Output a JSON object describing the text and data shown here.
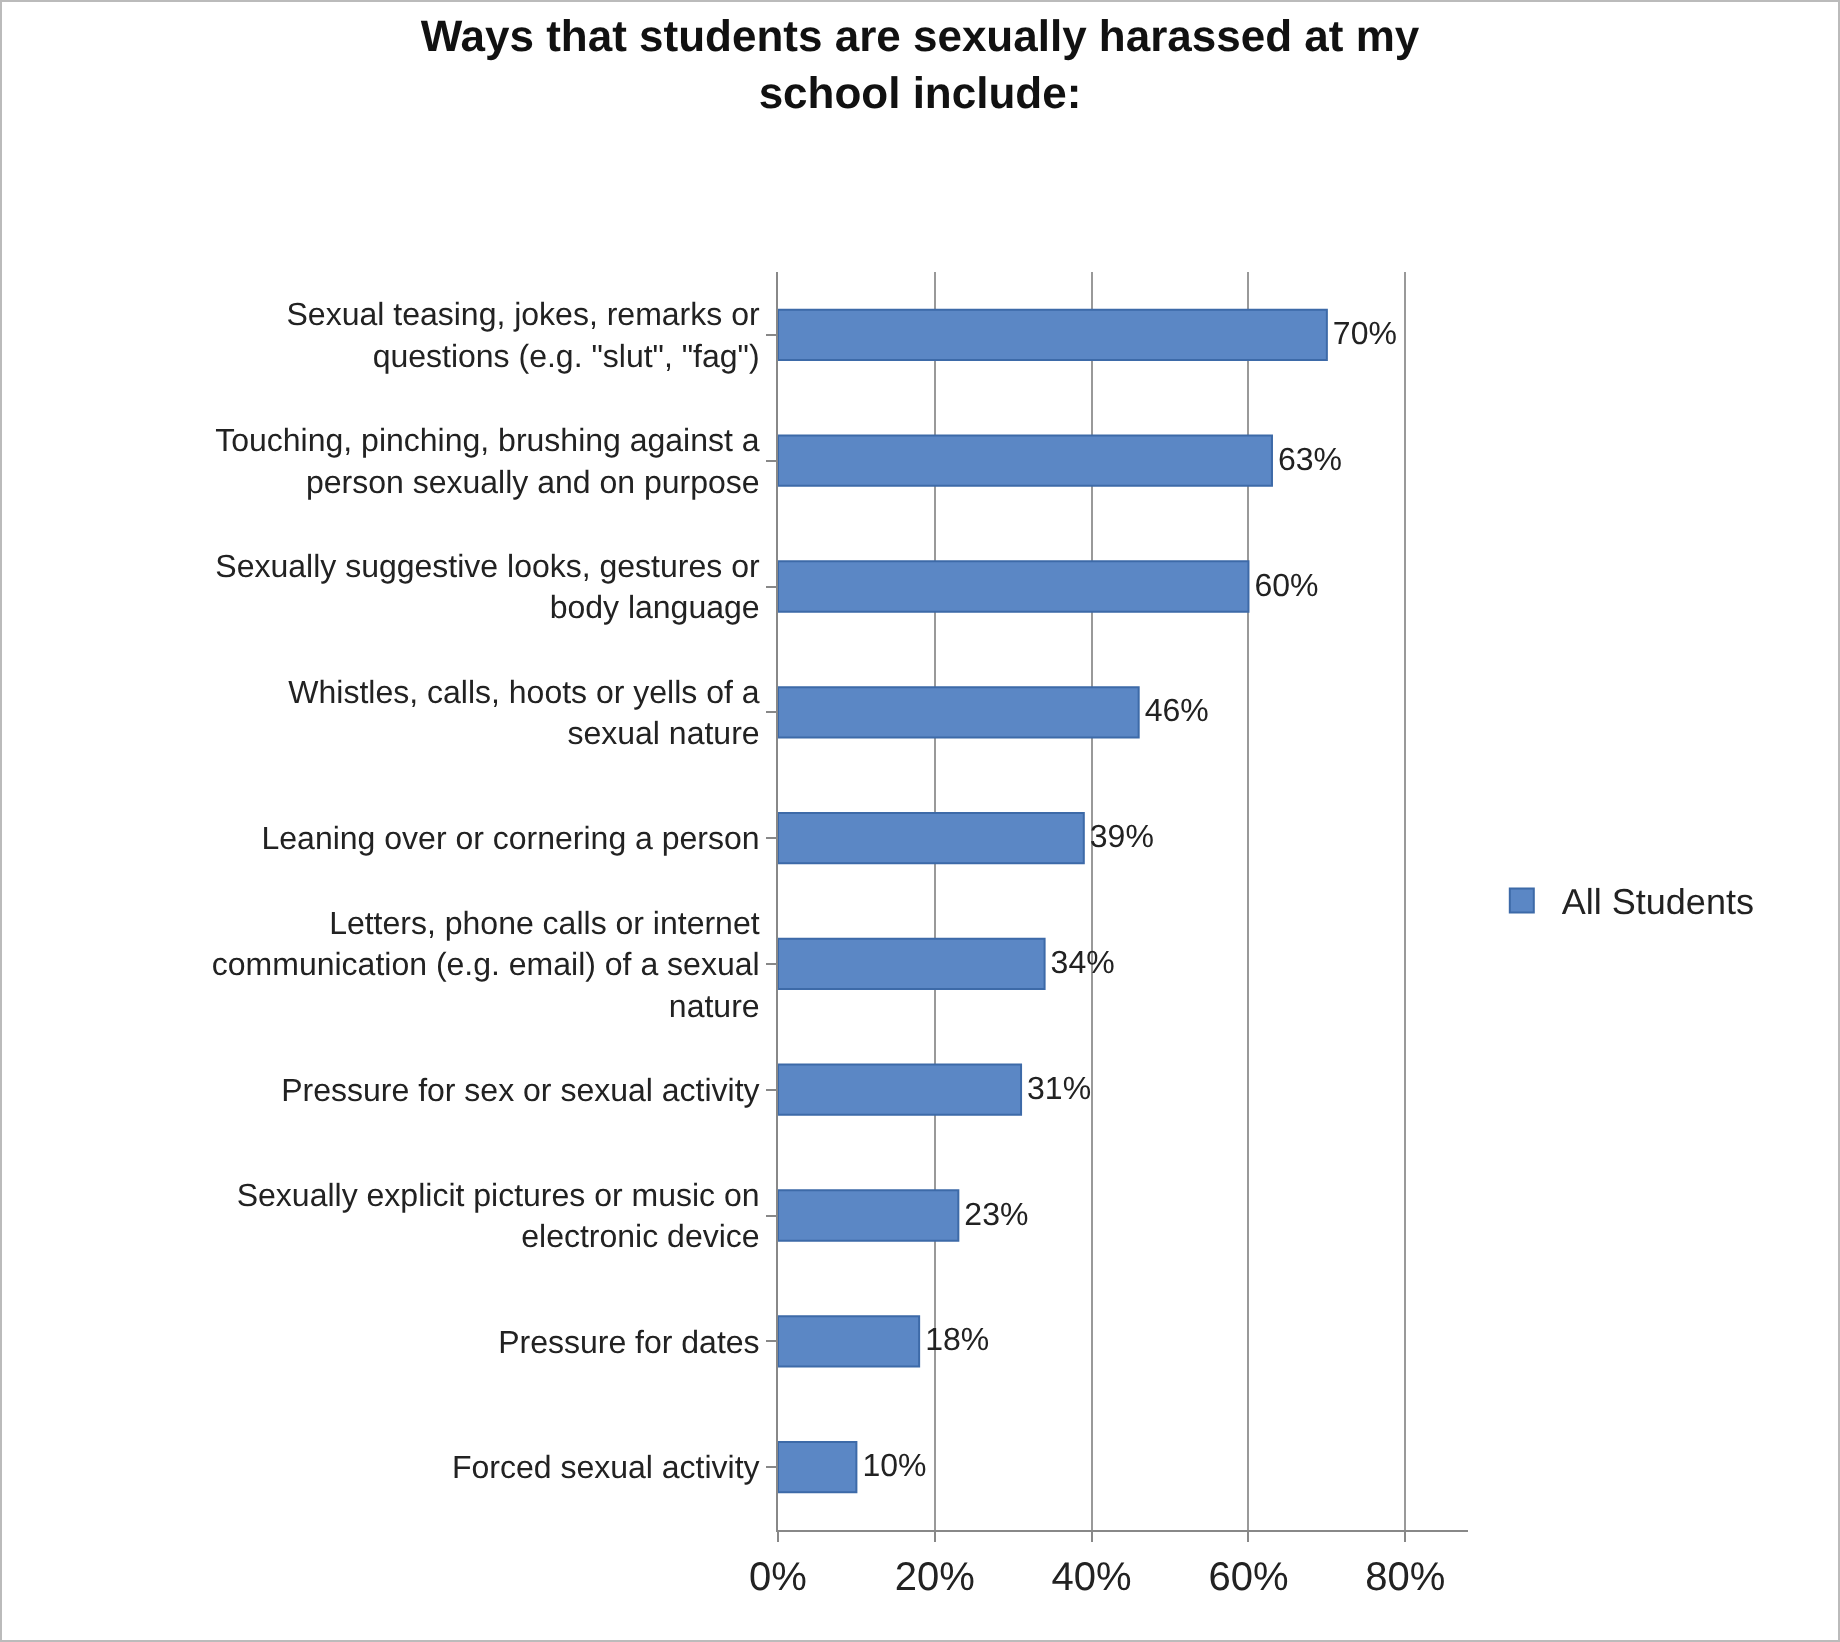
{
  "chart_data": {
    "type": "bar",
    "orientation": "horizontal",
    "title": "Ways that students are sexually harassed at my school include:",
    "categories": [
      "Sexual teasing, jokes, remarks or questions (e.g. \"slut\", \"fag\")",
      "Touching, pinching, brushing against a person sexually and on purpose",
      "Sexually suggestive looks, gestures or body language",
      "Whistles, calls, hoots or yells of a sexual nature",
      "Leaning over or cornering a person",
      "Letters, phone calls or internet communication (e.g. email) of a sexual nature",
      "Pressure for sex or sexual activity",
      "Sexually explicit pictures or music on electronic device",
      "Pressure for dates",
      "Forced sexual activity"
    ],
    "series": [
      {
        "name": "All Students",
        "color": "#5b87c5",
        "values": [
          70,
          63,
          60,
          46,
          39,
          34,
          31,
          23,
          18,
          10
        ],
        "value_labels": [
          "70%",
          "63%",
          "60%",
          "46%",
          "39%",
          "34%",
          "31%",
          "23%",
          "18%",
          "10%"
        ]
      }
    ],
    "xlim": [
      0,
      88
    ],
    "xticks": [
      {
        "value": 0,
        "label": "0%"
      },
      {
        "value": 20,
        "label": "20%"
      },
      {
        "value": 40,
        "label": "40%"
      },
      {
        "value": 60,
        "label": "60%"
      },
      {
        "value": 80,
        "label": "80%"
      }
    ],
    "grid": "x",
    "legend": "right"
  }
}
